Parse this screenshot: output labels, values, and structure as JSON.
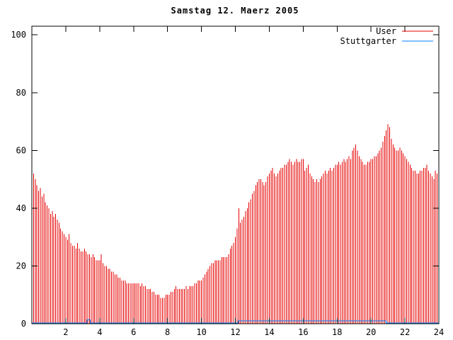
{
  "chart_data": {
    "type": "bar",
    "title": "Samstag 12. Maerz 2005",
    "xlabel": "",
    "ylabel": "",
    "xlim": [
      0,
      24
    ],
    "ylim": [
      0,
      103
    ],
    "xticks": [
      2,
      4,
      6,
      8,
      10,
      12,
      14,
      16,
      18,
      20,
      22,
      24
    ],
    "yticks": [
      0,
      20,
      40,
      60,
      80,
      100
    ],
    "grid": false,
    "legend_position": "top-right-inside",
    "background_color": "#ffffff",
    "axis_color": "#000000",
    "series": [
      {
        "name": "User",
        "style": "impulses",
        "color": "#e60000",
        "x_start": 0,
        "x_step": 0.1,
        "values": [
          53,
          52,
          50,
          48,
          46,
          47,
          44,
          45,
          42,
          41,
          40,
          38,
          39,
          37,
          38,
          36,
          35,
          33,
          32,
          31,
          30,
          29,
          31,
          28,
          27,
          27,
          26,
          28,
          26,
          25,
          25,
          26,
          25,
          24,
          24,
          23,
          24,
          23,
          22,
          22,
          22,
          24,
          21,
          20,
          20,
          19,
          19,
          18,
          18,
          17,
          17,
          16,
          16,
          15,
          15,
          15,
          14,
          14,
          14,
          14,
          14,
          14,
          14,
          14,
          13,
          14,
          13,
          13,
          12,
          12,
          12,
          11,
          11,
          10,
          10,
          10,
          9,
          9,
          9,
          10,
          10,
          10,
          11,
          11,
          12,
          13,
          12,
          12,
          12,
          12,
          12,
          13,
          12,
          13,
          13,
          13,
          14,
          14,
          15,
          15,
          15,
          16,
          17,
          18,
          19,
          20,
          21,
          21,
          22,
          22,
          22,
          22,
          23,
          23,
          23,
          23,
          24,
          26,
          27,
          28,
          30,
          33,
          40,
          35,
          36,
          37,
          39,
          40,
          42,
          43,
          45,
          46,
          48,
          49,
          50,
          50,
          49,
          48,
          49,
          51,
          52,
          53,
          54,
          52,
          51,
          52,
          53,
          54,
          54,
          55,
          55,
          56,
          57,
          56,
          55,
          56,
          57,
          56,
          56,
          57,
          57,
          53,
          54,
          55,
          52,
          51,
          50,
          49,
          50,
          49,
          50,
          51,
          52,
          53,
          52,
          53,
          54,
          53,
          54,
          55,
          55,
          56,
          55,
          56,
          57,
          56,
          57,
          58,
          57,
          60,
          61,
          62,
          60,
          58,
          57,
          56,
          55,
          55,
          56,
          56,
          57,
          57,
          58,
          58,
          59,
          60,
          61,
          63,
          65,
          67,
          69,
          68,
          64,
          62,
          61,
          60,
          60,
          61,
          60,
          59,
          58,
          57,
          56,
          55,
          54,
          53,
          53,
          52,
          52,
          53,
          53,
          54,
          54,
          55,
          53,
          52,
          51,
          50,
          53,
          52,
          52
        ]
      },
      {
        "name": "Stuttgarter",
        "style": "line",
        "color": "#0080ff",
        "points": [
          [
            0,
            0.2
          ],
          [
            3.25,
            0.2
          ],
          [
            3.25,
            1.4
          ],
          [
            3.45,
            1.4
          ],
          [
            3.45,
            0.2
          ],
          [
            12.17,
            0.2
          ],
          [
            12.17,
            1.0
          ],
          [
            20.9,
            1.0
          ],
          [
            20.9,
            0.2
          ],
          [
            24,
            0.2
          ]
        ]
      }
    ],
    "legend": [
      {
        "label": "User",
        "color": "#e60000"
      },
      {
        "label": "Stuttgarter",
        "color": "#0080ff"
      }
    ]
  }
}
